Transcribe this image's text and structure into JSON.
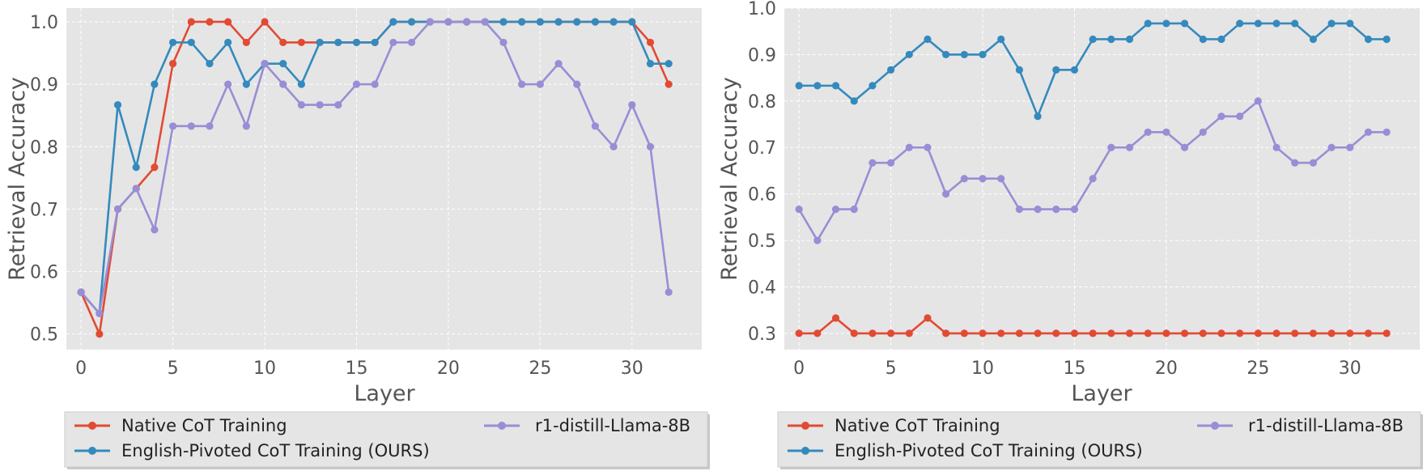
{
  "chart_data": [
    {
      "type": "line",
      "title": "",
      "xlabel": "Layer",
      "ylabel": "Retrieval Accuracy",
      "xlim": [
        -0.8,
        33.8
      ],
      "ylim": [
        0.475,
        1.022
      ],
      "xticks": [
        0,
        5,
        10,
        15,
        20,
        25,
        30
      ],
      "xtick_labels": [
        "0",
        "5",
        "10",
        "15",
        "20",
        "25",
        "30"
      ],
      "yticks": [
        0.5,
        0.6,
        0.7,
        0.8,
        0.9,
        1.0
      ],
      "ytick_labels": [
        "0.5",
        "0.6",
        "0.7",
        "0.8",
        "0.9",
        "1.0"
      ],
      "grid": true,
      "legend_position": "bottom",
      "x": [
        0,
        1,
        2,
        3,
        4,
        5,
        6,
        7,
        8,
        9,
        10,
        11,
        12,
        13,
        14,
        15,
        16,
        17,
        18,
        19,
        20,
        21,
        22,
        23,
        24,
        25,
        26,
        27,
        28,
        29,
        30,
        31,
        32
      ],
      "series": [
        {
          "name": "Native CoT Training",
          "color": "#E24A33",
          "values": [
            0.567,
            0.5,
            0.7,
            0.733,
            0.767,
            0.933,
            1.0,
            1.0,
            1.0,
            0.967,
            1.0,
            0.967,
            0.967,
            0.967,
            0.967,
            0.967,
            0.967,
            1.0,
            1.0,
            1.0,
            1.0,
            1.0,
            1.0,
            1.0,
            1.0,
            1.0,
            1.0,
            1.0,
            1.0,
            1.0,
            1.0,
            0.967,
            0.9
          ]
        },
        {
          "name": "English-Pivoted CoT Training (OURS)",
          "color": "#348ABD",
          "values": [
            0.567,
            0.533,
            0.867,
            0.767,
            0.9,
            0.967,
            0.967,
            0.933,
            0.967,
            0.9,
            0.933,
            0.933,
            0.9,
            0.967,
            0.967,
            0.967,
            0.967,
            1.0,
            1.0,
            1.0,
            1.0,
            1.0,
            1.0,
            1.0,
            1.0,
            1.0,
            1.0,
            1.0,
            1.0,
            1.0,
            1.0,
            0.933,
            0.933
          ]
        },
        {
          "name": "r1-distill-Llama-8B",
          "color": "#988ED5",
          "values": [
            0.567,
            0.533,
            0.7,
            0.733,
            0.667,
            0.833,
            0.833,
            0.833,
            0.9,
            0.833,
            0.933,
            0.9,
            0.867,
            0.867,
            0.867,
            0.9,
            0.9,
            0.967,
            0.967,
            1.0,
            1.0,
            1.0,
            1.0,
            0.967,
            0.9,
            0.9,
            0.933,
            0.9,
            0.833,
            0.8,
            0.867,
            0.8,
            0.567
          ]
        }
      ]
    },
    {
      "type": "line",
      "title": "",
      "xlabel": "Layer",
      "ylabel": "Retrieval Accuracy",
      "xlim": [
        -0.8,
        33.8
      ],
      "ylim": [
        0.265,
        1.0
      ],
      "xticks": [
        0,
        5,
        10,
        15,
        20,
        25,
        30
      ],
      "xtick_labels": [
        "0",
        "5",
        "10",
        "15",
        "20",
        "25",
        "30"
      ],
      "yticks": [
        0.3,
        0.4,
        0.5,
        0.6,
        0.7,
        0.8,
        0.9,
        1.0
      ],
      "ytick_labels": [
        "0.3",
        "0.4",
        "0.5",
        "0.6",
        "0.7",
        "0.8",
        "0.9",
        "1.0"
      ],
      "grid": true,
      "legend_position": "bottom",
      "x": [
        0,
        1,
        2,
        3,
        4,
        5,
        6,
        7,
        8,
        9,
        10,
        11,
        12,
        13,
        14,
        15,
        16,
        17,
        18,
        19,
        20,
        21,
        22,
        23,
        24,
        25,
        26,
        27,
        28,
        29,
        30,
        31,
        32
      ],
      "series": [
        {
          "name": "Native CoT Training",
          "color": "#E24A33",
          "values": [
            0.3,
            0.3,
            0.333,
            0.3,
            0.3,
            0.3,
            0.3,
            0.333,
            0.3,
            0.3,
            0.3,
            0.3,
            0.3,
            0.3,
            0.3,
            0.3,
            0.3,
            0.3,
            0.3,
            0.3,
            0.3,
            0.3,
            0.3,
            0.3,
            0.3,
            0.3,
            0.3,
            0.3,
            0.3,
            0.3,
            0.3,
            0.3,
            0.3
          ]
        },
        {
          "name": "English-Pivoted CoT Training (OURS)",
          "color": "#348ABD",
          "values": [
            0.833,
            0.833,
            0.833,
            0.8,
            0.833,
            0.867,
            0.9,
            0.933,
            0.9,
            0.9,
            0.9,
            0.933,
            0.867,
            0.767,
            0.867,
            0.867,
            0.933,
            0.933,
            0.933,
            0.967,
            0.967,
            0.967,
            0.933,
            0.933,
            0.967,
            0.967,
            0.967,
            0.967,
            0.933,
            0.967,
            0.967,
            0.933,
            0.933
          ]
        },
        {
          "name": "r1-distill-Llama-8B",
          "color": "#988ED5",
          "values": [
            0.567,
            0.5,
            0.567,
            0.567,
            0.667,
            0.667,
            0.7,
            0.7,
            0.6,
            0.633,
            0.633,
            0.633,
            0.567,
            0.567,
            0.567,
            0.567,
            0.633,
            0.7,
            0.7,
            0.733,
            0.733,
            0.7,
            0.733,
            0.767,
            0.767,
            0.8,
            0.7,
            0.667,
            0.667,
            0.7,
            0.7,
            0.733,
            0.733
          ]
        }
      ]
    }
  ]
}
